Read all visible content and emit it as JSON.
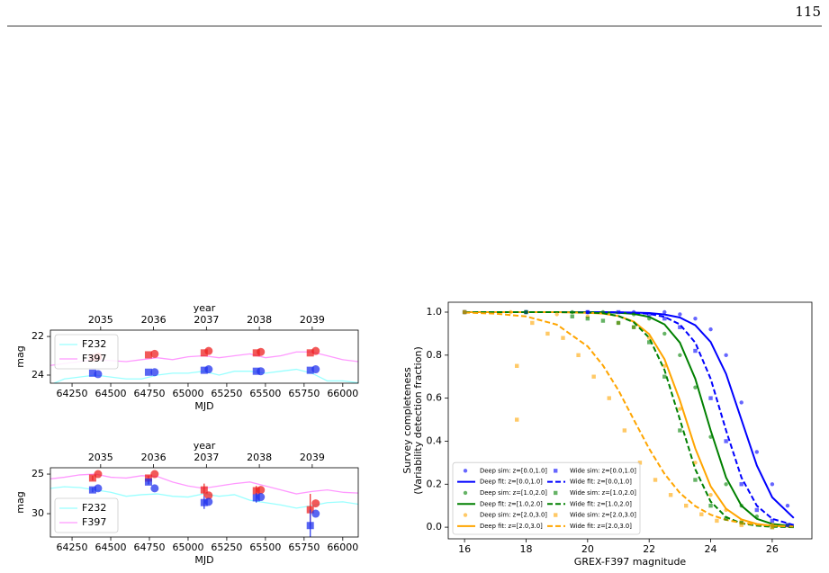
{
  "page_number": "115",
  "chart_data": [
    {
      "type": "line",
      "xlabel": "MJD",
      "ylabel": [
        "mag"
      ],
      "x2label": "year",
      "xlim": [
        64110,
        66100
      ],
      "xticks": [
        64250,
        64500,
        64750,
        65000,
        65250,
        65500,
        65750,
        66000
      ],
      "ylim": [
        24.42,
        21.67
      ],
      "yticks": [
        22,
        24
      ],
      "x2lim": [
        2034.05,
        2039.87
      ],
      "x2ticks": [
        2035,
        2036,
        2037,
        2038,
        2039
      ],
      "legend": "upper left",
      "series": [
        {
          "name": "F232",
          "color": "#99ffff",
          "x": [
            64110,
            64200,
            64300,
            64400,
            64500,
            64600,
            64700,
            64800,
            64900,
            65000,
            65100,
            65200,
            65300,
            65400,
            65500,
            65600,
            65700,
            65800,
            65900,
            66000,
            66100
          ],
          "values": [
            24.5,
            24.2,
            24.1,
            24.0,
            24.1,
            24.2,
            24.2,
            24.0,
            23.9,
            23.9,
            23.8,
            24.0,
            23.8,
            23.8,
            23.9,
            23.8,
            23.7,
            23.9,
            24.3,
            24.3,
            24.4
          ]
        },
        {
          "name": "F397",
          "color": "#ff99ff",
          "x": [
            64110,
            64200,
            64300,
            64400,
            64500,
            64600,
            64700,
            64800,
            64900,
            65000,
            65100,
            65200,
            65300,
            65400,
            65500,
            65600,
            65700,
            65800,
            65900,
            66000,
            66100
          ],
          "values": [
            23.5,
            23.4,
            23.3,
            23.2,
            23.25,
            23.3,
            23.2,
            23.1,
            23.2,
            23.05,
            23.0,
            23.1,
            23.0,
            22.9,
            23.1,
            23.0,
            22.8,
            22.8,
            23.0,
            23.2,
            23.3
          ]
        },
        {
          "color": "#ee2222",
          "marker": "square",
          "x": [
            64383,
            64744,
            65104,
            65441,
            65790
          ],
          "values": [
            23.1,
            22.95,
            22.85,
            22.85,
            22.85
          ]
        },
        {
          "color": "#ee2222",
          "marker": "circle",
          "x": [
            64418,
            64784,
            65133,
            65470,
            65825
          ],
          "values": [
            23.05,
            22.9,
            22.75,
            22.8,
            22.75
          ]
        },
        {
          "color": "#2233ee",
          "marker": "square",
          "x": [
            64383,
            64744,
            65104,
            65441,
            65790
          ],
          "values": [
            23.9,
            23.85,
            23.75,
            23.8,
            23.75
          ]
        },
        {
          "color": "#2233ee",
          "marker": "circle",
          "x": [
            64418,
            64784,
            65133,
            65470,
            65825
          ],
          "values": [
            23.95,
            23.85,
            23.7,
            23.8,
            23.7
          ]
        }
      ]
    },
    {
      "type": "line",
      "xlabel": "MJD",
      "ylabel": [
        "mag"
      ],
      "x2label": "year",
      "xlim": [
        64110,
        66100
      ],
      "xticks": [
        64250,
        64500,
        64750,
        65000,
        65250,
        65500,
        65750,
        66000
      ],
      "ylim": [
        32.95,
        24.2
      ],
      "yticks": [
        25,
        30
      ],
      "x2lim": [
        2034.05,
        2039.87
      ],
      "x2ticks": [
        2035,
        2036,
        2037,
        2038,
        2039
      ],
      "legend": "lower left",
      "series": [
        {
          "name": "F232",
          "color": "#99ffff",
          "x": [
            64110,
            64200,
            64300,
            64400,
            64500,
            64600,
            64700,
            64800,
            64900,
            65000,
            65100,
            65200,
            65300,
            65400,
            65500,
            65600,
            65700,
            65800,
            65900,
            66000,
            66100
          ],
          "values": [
            26.8,
            26.6,
            26.7,
            27.0,
            27.3,
            27.8,
            27.6,
            27.5,
            27.8,
            27.9,
            27.5,
            27.8,
            27.6,
            28.3,
            28.6,
            28.9,
            29.3,
            29.0,
            28.6,
            28.5,
            28.8
          ]
        },
        {
          "name": "F397",
          "color": "#ff99ff",
          "x": [
            64110,
            64200,
            64300,
            64400,
            64500,
            64600,
            64700,
            64800,
            64900,
            65000,
            65100,
            65200,
            65300,
            65400,
            65500,
            65600,
            65700,
            65800,
            65900,
            66000,
            66100
          ],
          "values": [
            25.6,
            25.4,
            25.1,
            25.0,
            25.4,
            25.5,
            25.2,
            25.3,
            26.0,
            26.5,
            26.8,
            26.5,
            26.2,
            26.0,
            26.5,
            27.0,
            27.5,
            27.2,
            27.0,
            27.3,
            27.4
          ]
        },
        {
          "color": "#ee2222",
          "marker": "square",
          "x": [
            64383,
            64744,
            65104,
            65441,
            65790
          ],
          "values": [
            25.5,
            25.5,
            27.0,
            27.1,
            29.5
          ],
          "errors": [
            0.3,
            0.3,
            0.8,
            0.6,
            2.0
          ]
        },
        {
          "color": "#ee2222",
          "marker": "circle",
          "x": [
            64418,
            64784,
            65133,
            65470,
            65825
          ],
          "values": [
            25.0,
            25.0,
            27.7,
            27.0,
            28.7
          ]
        },
        {
          "color": "#2233ee",
          "marker": "square",
          "x": [
            64383,
            64744,
            65104,
            65441,
            65790
          ],
          "values": [
            27.0,
            26.0,
            28.6,
            28.0,
            31.5
          ],
          "errors": [
            0.3,
            0.3,
            0.8,
            0.6,
            2.0
          ]
        },
        {
          "color": "#2233ee",
          "marker": "circle",
          "x": [
            64418,
            64784,
            65133,
            65470,
            65825
          ],
          "values": [
            26.8,
            26.8,
            28.5,
            27.9,
            30.0
          ]
        }
      ]
    },
    {
      "type": "line",
      "xlabel": "GREX-F397 magnitude",
      "ylabel": [
        "Survey completeness",
        "(Variability detection fraction)"
      ],
      "xlim": [
        15.47,
        27.29
      ],
      "xticks": [
        16,
        18,
        20,
        22,
        24,
        26
      ],
      "ylim": [
        -0.054,
        1.046
      ],
      "yticks": [
        {
          "value": 0,
          "label": "0.0"
        },
        {
          "value": 0.2,
          "label": "0.2"
        },
        {
          "value": 0.4,
          "label": "0.4"
        },
        {
          "value": 0.6,
          "label": "0.6"
        },
        {
          "value": 0.8,
          "label": "0.8"
        },
        {
          "value": 1,
          "label": "1.0"
        }
      ],
      "legend": "lower left",
      "legend_columns": 2,
      "series": [
        {
          "name": "Deep sim: z=[0.0,1.0]",
          "color": "#0000ff",
          "marker": "circle",
          "x": [
            16,
            18,
            20,
            21.5,
            22.5,
            23,
            23.5,
            24,
            24.5,
            25,
            25.5,
            26,
            26.5
          ],
          "values": [
            1,
            1,
            1,
            1,
            1,
            0.99,
            0.97,
            0.92,
            0.8,
            0.58,
            0.35,
            0.2,
            0.1
          ]
        },
        {
          "name": "Deep fit: z=[0.0,1.0]",
          "color": "#0000ff",
          "linestyle": "solid",
          "x": [
            16,
            17,
            18,
            19,
            20,
            20.5,
            21,
            21.5,
            22,
            22.5,
            23,
            23.5,
            24,
            24.5,
            25,
            25.5,
            26,
            26.7
          ],
          "values": [
            1,
            1,
            1,
            1,
            1,
            1,
            0.999,
            0.998,
            0.996,
            0.989,
            0.975,
            0.939,
            0.861,
            0.713,
            0.5,
            0.287,
            0.139,
            0.043
          ]
        },
        {
          "name": "Deep sim: z=[1.0,2.0]",
          "color": "#008000",
          "marker": "circle",
          "x": [
            16,
            18,
            19.5,
            20.5,
            21.5,
            22,
            22.5,
            23,
            23.5,
            24,
            24.5,
            25,
            25.5,
            26.5
          ],
          "values": [
            1,
            1,
            1,
            1,
            0.99,
            0.97,
            0.9,
            0.8,
            0.65,
            0.42,
            0.2,
            0.1,
            0.05,
            0.01
          ]
        },
        {
          "name": "Deep fit: z=[1.0,2.0]",
          "color": "#008000",
          "linestyle": "solid",
          "x": [
            16,
            17,
            18,
            19,
            20,
            20.5,
            21,
            21.5,
            22,
            22.5,
            23,
            23.5,
            24,
            24.5,
            25,
            25.5,
            26,
            26.7
          ],
          "values": [
            1,
            1,
            1,
            1,
            1,
            0.999,
            0.997,
            0.992,
            0.978,
            0.943,
            0.858,
            0.69,
            0.45,
            0.231,
            0.1,
            0.039,
            0.015,
            0.004
          ]
        },
        {
          "name": "Deep sim: z=[2.0,3.0]",
          "color": "#ffa500",
          "marker": "circle",
          "x": [
            16,
            17.5,
            19,
            20,
            21,
            21.5,
            22,
            22.5,
            23,
            23.5,
            24,
            24.5,
            25,
            26
          ],
          "values": [
            1,
            1,
            0.99,
            0.98,
            0.95,
            0.93,
            0.88,
            0.75,
            0.55,
            0.3,
            0.15,
            0.08,
            0.03,
            0.01
          ]
        },
        {
          "name": "Deep fit: z=[2.0,3.0]",
          "color": "#ffa500",
          "linestyle": "solid",
          "x": [
            16,
            17,
            18,
            19,
            20,
            20.5,
            21,
            21.5,
            22,
            22.5,
            23,
            23.5,
            24,
            24.5,
            25,
            25.5,
            26,
            26.7
          ],
          "values": [
            1,
            1,
            1,
            1,
            0.997,
            0.993,
            0.982,
            0.956,
            0.898,
            0.781,
            0.589,
            0.366,
            0.19,
            0.086,
            0.036,
            0.015,
            0.006,
            0.002
          ]
        },
        {
          "name": "Wide sim: z=[0.0,1.0]",
          "color": "#0000ff",
          "marker": "square",
          "x": [
            16,
            18,
            20,
            21,
            22,
            22.5,
            23,
            23.5,
            24,
            24.5,
            25,
            25.5,
            26,
            26.5
          ],
          "values": [
            1,
            1,
            1,
            1,
            0.99,
            0.97,
            0.93,
            0.82,
            0.6,
            0.4,
            0.2,
            0.08,
            0.03,
            0.01
          ]
        },
        {
          "name": "Wide fit: z=[0.0,1.0]",
          "color": "#0000ff",
          "linestyle": "dashed",
          "x": [
            16,
            17,
            18,
            19,
            20,
            20.5,
            21,
            21.5,
            22,
            22.5,
            23,
            23.5,
            24,
            24.5,
            25,
            25.5,
            26,
            26.7
          ],
          "values": [
            1,
            1,
            1,
            1,
            1,
            1,
            0.999,
            0.997,
            0.992,
            0.978,
            0.943,
            0.858,
            0.69,
            0.45,
            0.231,
            0.1,
            0.039,
            0.01
          ]
        },
        {
          "name": "Wide sim: z=[1.0,2.0]",
          "color": "#008000",
          "marker": "square",
          "x": [
            16,
            18,
            19.5,
            20,
            20.5,
            21,
            21.5,
            22,
            22.5,
            23,
            23.5,
            24,
            24.5,
            25,
            26
          ],
          "values": [
            1,
            1,
            0.98,
            0.97,
            0.96,
            0.95,
            0.93,
            0.86,
            0.7,
            0.45,
            0.22,
            0.1,
            0.04,
            0.02,
            0
          ]
        },
        {
          "name": "Wide fit: z=[1.0,2.0]",
          "color": "#008000",
          "linestyle": "dashed",
          "x": [
            16,
            17,
            18,
            19,
            20,
            20.5,
            21,
            21.5,
            22,
            22.5,
            23,
            23.5,
            24,
            24.5,
            25,
            25.5,
            26,
            26.7
          ],
          "values": [
            1,
            1,
            1,
            1,
            0.998,
            0.995,
            0.982,
            0.953,
            0.881,
            0.731,
            0.5,
            0.269,
            0.119,
            0.047,
            0.018,
            0.007,
            0.002,
            0
          ]
        },
        {
          "name": "Wide sim: z=[2.0,3.0]",
          "color": "#ffa500",
          "marker": "square",
          "x": [
            16,
            17.7,
            17.7,
            18.2,
            18.7,
            19.2,
            19.7,
            20.2,
            20.7,
            21.2,
            21.7,
            22.2,
            22.7,
            23.2,
            23.7,
            24.2,
            25,
            26
          ],
          "values": [
            1,
            0.75,
            0.5,
            0.95,
            0.9,
            0.88,
            0.8,
            0.7,
            0.6,
            0.45,
            0.3,
            0.22,
            0.15,
            0.1,
            0.06,
            0.03,
            0.01,
            0
          ]
        },
        {
          "name": "Wide fit: z=[2.0,3.0]",
          "color": "#ffa500",
          "linestyle": "dashed",
          "x": [
            16,
            17,
            18,
            19,
            20,
            20.5,
            21,
            21.5,
            22,
            22.5,
            23,
            23.5,
            24,
            24.5,
            25,
            25.5,
            26,
            26.7
          ],
          "values": [
            0.998,
            0.993,
            0.98,
            0.942,
            0.841,
            0.752,
            0.637,
            0.5,
            0.365,
            0.248,
            0.159,
            0.098,
            0.058,
            0.034,
            0.02,
            0.012,
            0.007,
            0.003
          ]
        }
      ]
    }
  ]
}
